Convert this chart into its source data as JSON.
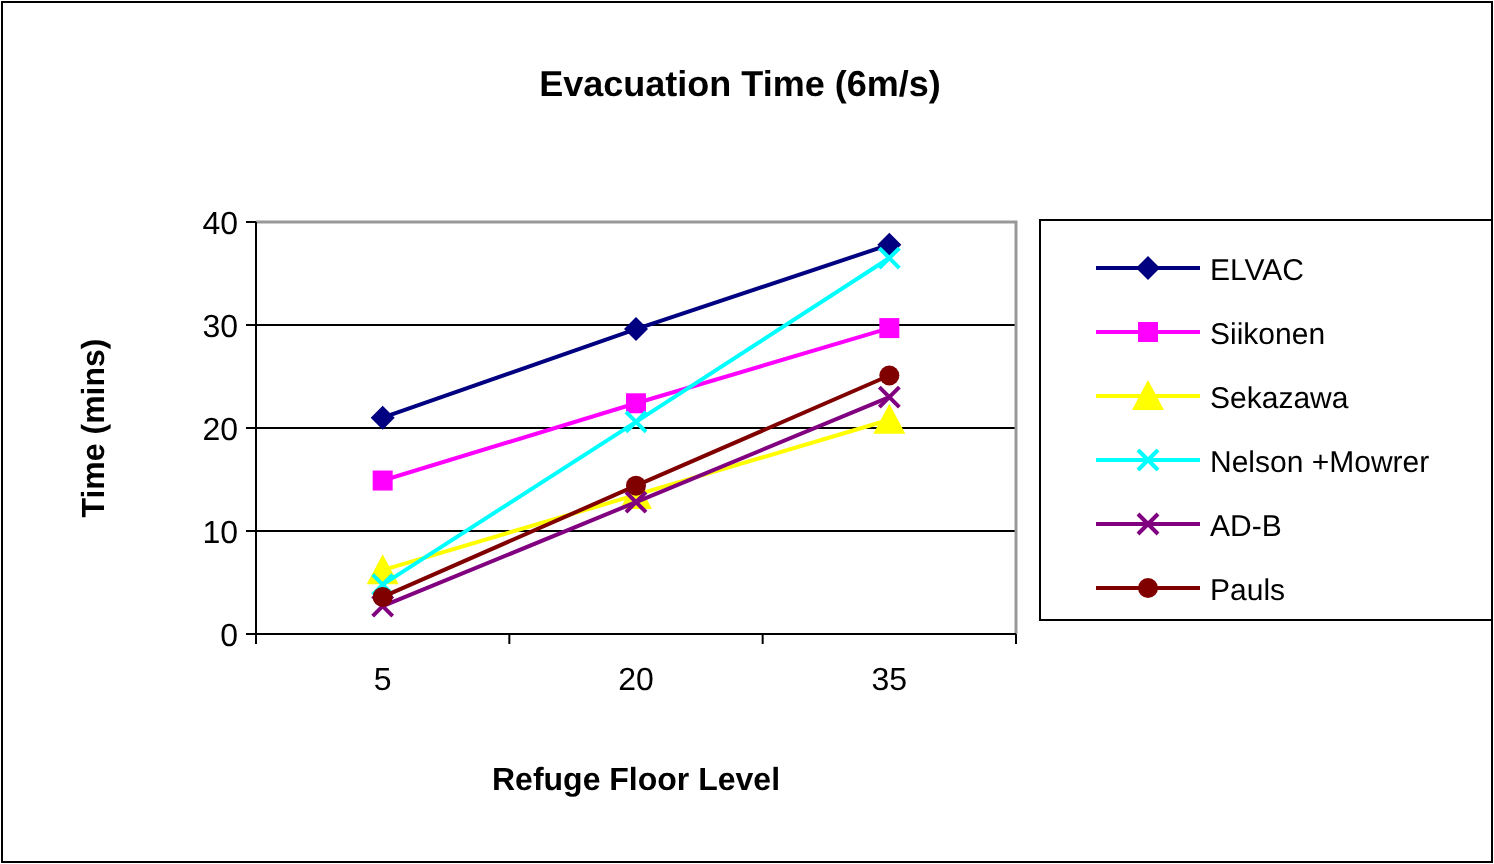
{
  "chart_data": {
    "type": "line",
    "title": "Evacuation Time (6m/s)",
    "xlabel": "Refuge Floor Level",
    "ylabel": "Time (mins)",
    "categories": [
      "5",
      "20",
      "35"
    ],
    "ylim": [
      0,
      40
    ],
    "yticks": [
      0,
      10,
      20,
      30,
      40
    ],
    "grid": "y",
    "legend": "right",
    "series": [
      {
        "name": "ELVAC",
        "color": "#000080",
        "marker": "diamond",
        "values": [
          21,
          29.6,
          37.8
        ]
      },
      {
        "name": "Siikonen",
        "color": "#ff00ff",
        "marker": "square",
        "values": [
          14.9,
          22.4,
          29.7
        ]
      },
      {
        "name": "Sekazawa",
        "color": "#ffff00",
        "marker": "triangle",
        "values": [
          6.2,
          13.5,
          20.8
        ]
      },
      {
        "name": "Nelson +Mowrer",
        "color": "#00ffff",
        "marker": "cross",
        "values": [
          4.8,
          20.6,
          36.5
        ]
      },
      {
        "name": "AD-B",
        "color": "#800080",
        "marker": "cross",
        "values": [
          2.7,
          12.8,
          23
        ]
      },
      {
        "name": "Pauls",
        "color": "#800000",
        "marker": "circle",
        "values": [
          3.6,
          14.4,
          25.1
        ]
      }
    ]
  }
}
